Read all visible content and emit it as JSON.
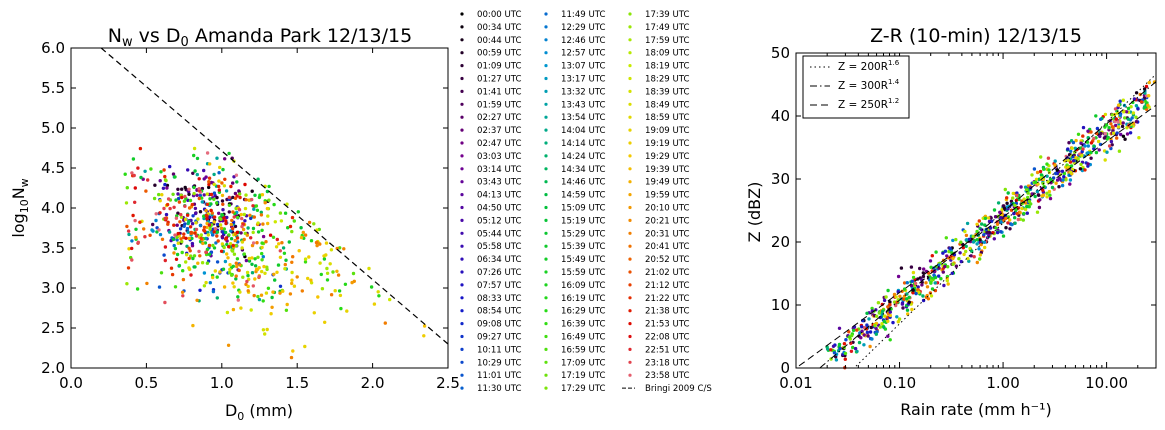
{
  "chart_data": [
    {
      "type": "scatter",
      "title": "N_w vs D_0 Amanda Park 12/13/15",
      "title_parts": {
        "a": "N",
        "a_sub": "w",
        "b": " vs D",
        "b_sub": "0",
        "c": " Amanda Park 12/13/15"
      },
      "xlabel": "D_0 (mm)",
      "xlabel_parts": {
        "a": "D",
        "a_sub": "0",
        "b": " (mm)"
      },
      "ylabel": "log10Nw",
      "ylabel_parts": {
        "a": "log",
        "a_sub": "10",
        "b": "N",
        "b_sub": "w"
      },
      "xlim": [
        0.0,
        2.5
      ],
      "ylim": [
        2.0,
        6.0
      ],
      "xticks": [
        "0.0",
        "0.5",
        "1.0",
        "1.5",
        "2.0",
        "2.5"
      ],
      "yticks": [
        "2.0",
        "2.5",
        "3.0",
        "3.5",
        "4.0",
        "4.5",
        "5.0",
        "5.5",
        "6.0"
      ],
      "reference_line": {
        "name": "Bringi 2009 C/S",
        "style": "dashed",
        "x": [
          0.2,
          2.5
        ],
        "y": [
          6.0,
          2.3
        ]
      },
      "note": "approximately 900 one-minute DSD points colored by time, from 00:00 UTC (black/purple) through 11:30 UTC (blue/green), 17:29 UTC (yellow), to 23:58 UTC (red/pink)",
      "clusters": [
        {
          "time_group": "00:00-05:58 UTC",
          "color": "#2a1fbf",
          "d0_range": [
            0.4,
            1.1
          ],
          "log10nw_mean": 3.95
        },
        {
          "time_group": "06:34-11:30 UTC",
          "color": "#1a8fd8",
          "d0_range": [
            0.4,
            1.3
          ],
          "log10nw_mean": 3.7
        },
        {
          "time_group": "11:49-16:59 UTC",
          "color": "#22cc22",
          "d0_range": [
            0.4,
            1.9
          ],
          "log10nw_mean": 3.7
        },
        {
          "time_group": "17:09-19:59 UTC",
          "color": "#e8d800",
          "d0_range": [
            0.6,
            2.5
          ],
          "log10nw_mean": 3.6
        },
        {
          "time_group": "20:10-23:58 UTC",
          "color": "#dd1010",
          "d0_range": [
            0.4,
            1.6
          ],
          "log10nw_mean": 3.75
        }
      ]
    },
    {
      "type": "scatter",
      "title": "Z-R (10-min) 12/13/15",
      "xlabel": "Rain rate (mm h⁻¹)",
      "ylabel": "Z (dBZ)",
      "xscale": "log",
      "xlim": [
        0.01,
        30
      ],
      "ylim": [
        0,
        50
      ],
      "xticks": [
        "0.01",
        "0.10",
        "1.00",
        "10.00"
      ],
      "yticks": [
        "0",
        "10",
        "20",
        "30",
        "40",
        "50"
      ],
      "legend_position": "top-left",
      "fits": [
        {
          "name": "Z = 200R^1.6",
          "label": "Z = 200R",
          "sup": "1.6",
          "a": 200,
          "b": 1.6,
          "style": "dotted"
        },
        {
          "name": "Z = 300R^1.4",
          "label": "Z = 300R",
          "sup": "1.4",
          "a": 300,
          "b": 1.4,
          "style": "dashdot"
        },
        {
          "name": "Z = 250R^1.2",
          "label": "Z = 250R",
          "sup": "1.2",
          "a": 250,
          "b": 1.2,
          "style": "dashed"
        }
      ],
      "note": "approximately 900 points following the Z-R relations from R≈0.02 (Z≈0 dBZ) to R≈25 (Z≈46 dBZ), colored by time as in the legend"
    }
  ],
  "legend": {
    "columns": [
      [
        "00:00 UTC",
        "00:34 UTC",
        "00:44 UTC",
        "00:59 UTC",
        "01:09 UTC",
        "01:27 UTC",
        "01:41 UTC",
        "01:59 UTC",
        "02:27 UTC",
        "02:37 UTC",
        "02:47 UTC",
        "03:03 UTC",
        "03:14 UTC",
        "03:43 UTC",
        "04:13 UTC",
        "04:50 UTC",
        "05:12 UTC",
        "05:44 UTC",
        "05:58 UTC",
        "06:34 UTC",
        "07:26 UTC",
        "07:57 UTC",
        "08:33 UTC",
        "08:54 UTC",
        "09:08 UTC",
        "09:27 UTC",
        "10:11 UTC",
        "10:29 UTC",
        "11:01 UTC",
        "11:30 UTC"
      ],
      [
        "11:49 UTC",
        "12:29 UTC",
        "12:46 UTC",
        "12:57 UTC",
        "13:07 UTC",
        "13:17 UTC",
        "13:32 UTC",
        "13:43 UTC",
        "13:54 UTC",
        "14:04 UTC",
        "14:14 UTC",
        "14:24 UTC",
        "14:34 UTC",
        "14:46 UTC",
        "14:59 UTC",
        "15:09 UTC",
        "15:19 UTC",
        "15:29 UTC",
        "15:39 UTC",
        "15:49 UTC",
        "15:59 UTC",
        "16:09 UTC",
        "16:19 UTC",
        "16:29 UTC",
        "16:39 UTC",
        "16:49 UTC",
        "16:59 UTC",
        "17:09 UTC",
        "17:19 UTC",
        "17:29 UTC"
      ],
      [
        "17:39 UTC",
        "17:49 UTC",
        "17:59 UTC",
        "18:09 UTC",
        "18:19 UTC",
        "18:29 UTC",
        "18:39 UTC",
        "18:49 UTC",
        "18:59 UTC",
        "19:09 UTC",
        "19:19 UTC",
        "19:29 UTC",
        "19:39 UTC",
        "19:49 UTC",
        "19:59 UTC",
        "20:10 UTC",
        "20:21 UTC",
        "20:31 UTC",
        "20:41 UTC",
        "20:52 UTC",
        "21:02 UTC",
        "21:12 UTC",
        "21:22 UTC",
        "21:38 UTC",
        "21:53 UTC",
        "22:08 UTC",
        "22:51 UTC",
        "23:18 UTC",
        "23:58 UTC",
        "Bringi 2009 C/S"
      ]
    ]
  }
}
